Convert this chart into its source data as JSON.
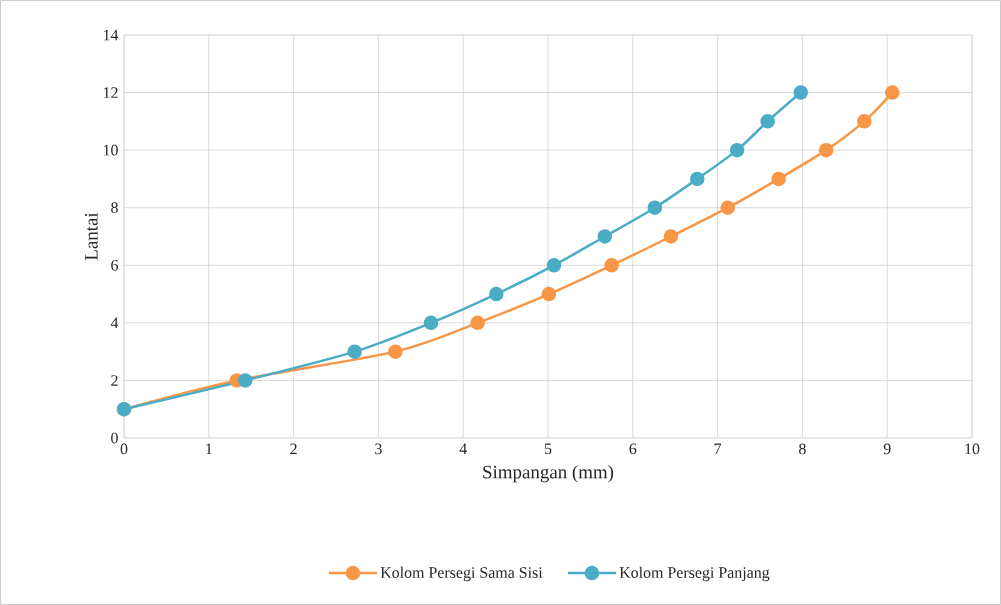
{
  "chart_data": {
    "type": "line",
    "xlabel": "Simpangan (mm)",
    "ylabel": "Lantai",
    "xlim": [
      0,
      10
    ],
    "xticks": [
      0,
      1,
      2,
      3,
      4,
      5,
      6,
      7,
      8,
      9,
      10
    ],
    "ylim": [
      0,
      14
    ],
    "yticks": [
      0,
      2,
      4,
      6,
      8,
      10,
      12,
      14
    ],
    "grid": true,
    "legend": "bottom",
    "marker": "circle",
    "line_style": "solid",
    "series": [
      {
        "name": "Kolom Persegi Sama Sisi",
        "color": "#f79646",
        "x": [
          0,
          1.33,
          3.2,
          4.17,
          5.01,
          5.75,
          6.45,
          7.12,
          7.72,
          8.28,
          8.73,
          9.06
        ],
        "values": [
          1,
          2,
          3,
          4,
          5,
          6,
          7,
          8,
          9,
          10,
          11,
          12
        ]
      },
      {
        "name": "Kolom Persegi Panjang",
        "color": "#4bacc6",
        "x": [
          0,
          1.43,
          2.72,
          3.62,
          4.39,
          5.07,
          5.67,
          6.26,
          6.76,
          7.23,
          7.59,
          7.98
        ],
        "values": [
          1,
          2,
          3,
          4,
          5,
          6,
          7,
          8,
          9,
          10,
          11,
          12
        ]
      }
    ]
  }
}
